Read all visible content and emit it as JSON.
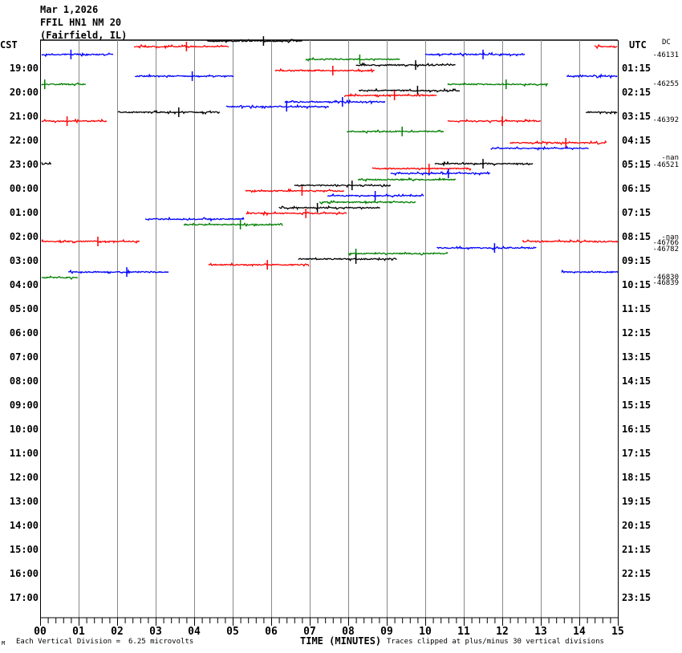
{
  "header": {
    "date": "Mar 1,2026",
    "station": "FFIL HN1 NM 20",
    "location": "(Fairfield, IL)"
  },
  "left_axis": {
    "title": "CST",
    "labels": [
      "19:00",
      "20:00",
      "21:00",
      "22:00",
      "23:00",
      "00:00",
      "01:00",
      "02:00",
      "03:00",
      "04:00",
      "05:00",
      "06:00",
      "07:00",
      "08:00",
      "09:00",
      "10:00",
      "11:00",
      "12:00",
      "13:00",
      "14:00",
      "15:00",
      "16:00",
      "17:00"
    ]
  },
  "right_axis": {
    "title": "UTC",
    "labels": [
      "01:15",
      "02:15",
      "03:15",
      "04:15",
      "05:15",
      "06:15",
      "07:15",
      "08:15",
      "09:15",
      "10:15",
      "11:15",
      "12:15",
      "13:15",
      "14:15",
      "15:15",
      "16:15",
      "17:15",
      "18:15",
      "19:15",
      "20:15",
      "21:15",
      "22:15",
      "23:15"
    ]
  },
  "dc": {
    "title": "DC",
    "values": [
      {
        "text": "-46131",
        "row": 0.5
      },
      {
        "text": "-46255",
        "row": 1.7
      },
      {
        "text": "-46392",
        "row": 3.2
      },
      {
        "text": "-nan",
        "row": 4.78
      },
      {
        "text": "-46521",
        "row": 5.05
      },
      {
        "text": "-nan",
        "row": 8.05
      },
      {
        "text": "-46766",
        "row": 8.3
      },
      {
        "text": "-46782",
        "row": 8.57
      },
      {
        "text": "-46830",
        "row": 9.73
      },
      {
        "text": "-46839",
        "row": 9.98
      }
    ]
  },
  "footer": {
    "corner": "M",
    "division_label": "Each Vertical Division =",
    "division_value": "6.25 microvolts",
    "xlabel": "TIME (MINUTES)",
    "clip_note": "Traces clipped at plus/minus 30 vertical divisions"
  },
  "chart_data": {
    "type": "line",
    "title": "FFIL HN1 NM 20 helicorder",
    "xlabel": "TIME (MINUTES)",
    "xlim": [
      0,
      15
    ],
    "x_ticks": [
      "00",
      "01",
      "02",
      "03",
      "04",
      "05",
      "06",
      "07",
      "08",
      "09",
      "10",
      "11",
      "12",
      "13",
      "14",
      "15"
    ],
    "rows": 24,
    "colors": {
      "black": "#000000",
      "red": "#ff0000",
      "blue": "#0000ff",
      "green": "#007f00"
    },
    "traces": [
      {
        "color": "black",
        "start": 4.33,
        "end": 6.83,
        "level": -0.13,
        "spike": 5.8
      },
      {
        "color": "red",
        "start": 14.4,
        "end": 15,
        "level": 0.1
      },
      {
        "color": "red",
        "start": 2.44,
        "end": 4.9,
        "level": 0.1,
        "spike": 3.8
      },
      {
        "color": "blue",
        "start": 0.04,
        "end": 1.9,
        "level": 0.43,
        "spike": 0.8
      },
      {
        "color": "blue",
        "start": 10,
        "end": 12.6,
        "level": 0.43,
        "spike": 11.5
      },
      {
        "color": "green",
        "start": 6.9,
        "end": 9.35,
        "level": 0.63,
        "spike": 8.3
      },
      {
        "color": "black",
        "start": 8.2,
        "end": 10.8,
        "level": 0.87,
        "spike": 9.75
      },
      {
        "color": "red",
        "start": 6.1,
        "end": 8.7,
        "level": 1.1,
        "spike": 7.6
      },
      {
        "color": "blue",
        "start": 2.46,
        "end": 5.04,
        "level": 1.33,
        "spike": 3.95
      },
      {
        "color": "blue",
        "start": 13.67,
        "end": 15,
        "level": 1.33
      },
      {
        "color": "green",
        "start": 0.04,
        "end": 1.19,
        "level": 1.67,
        "spike": 0.12
      },
      {
        "color": "green",
        "start": 10.58,
        "end": 13.2,
        "level": 1.67,
        "spike": 12.1
      },
      {
        "color": "black",
        "start": 8.27,
        "end": 10.9,
        "level": 1.93,
        "spike": 9.8
      },
      {
        "color": "red",
        "start": 7.9,
        "end": 10.3,
        "level": 2.13,
        "spike": 9.2
      },
      {
        "color": "blue",
        "start": 6.35,
        "end": 8.96,
        "level": 2.4,
        "spike": 7.85
      },
      {
        "color": "blue",
        "start": 4.83,
        "end": 7.5,
        "level": 2.6,
        "spike": 6.4
      },
      {
        "color": "black",
        "start": 2.02,
        "end": 4.67,
        "level": 2.83,
        "spike": 3.6
      },
      {
        "color": "black",
        "start": 14.17,
        "end": 15,
        "level": 2.83
      },
      {
        "color": "red",
        "start": 0.04,
        "end": 1.73,
        "level": 3.2,
        "spike": 0.7
      },
      {
        "color": "red",
        "start": 10.58,
        "end": 13,
        "level": 3.2,
        "spike": 12
      },
      {
        "color": "green",
        "start": 7.96,
        "end": 10.5,
        "level": 3.63,
        "spike": 9.4
      },
      {
        "color": "red",
        "start": 12.2,
        "end": 14.7,
        "level": 4.1,
        "spike": 13.65
      },
      {
        "color": "blue",
        "start": 11.7,
        "end": 14.25,
        "level": 4.33
      },
      {
        "color": "black",
        "start": 0.04,
        "end": 0.31,
        "level": 4.97
      },
      {
        "color": "black",
        "start": 10.25,
        "end": 12.8,
        "level": 4.97,
        "spike": 11.5
      },
      {
        "color": "red",
        "start": 8.62,
        "end": 11.2,
        "level": 5.17,
        "spike": 10.1
      },
      {
        "color": "blue",
        "start": 9.1,
        "end": 11.7,
        "level": 5.37,
        "spike": 10.6
      },
      {
        "color": "green",
        "start": 8.25,
        "end": 10.8,
        "level": 5.63
      },
      {
        "color": "black",
        "start": 6.6,
        "end": 9.1,
        "level": 5.87,
        "spike": 8.1
      },
      {
        "color": "red",
        "start": 5.33,
        "end": 7.9,
        "level": 6.1,
        "spike": 6.8
      },
      {
        "color": "blue",
        "start": 7.46,
        "end": 9.96,
        "level": 6.3,
        "spike": 8.7
      },
      {
        "color": "green",
        "start": 7.25,
        "end": 9.75,
        "level": 6.57
      },
      {
        "color": "black",
        "start": 6.2,
        "end": 8.83,
        "level": 6.8,
        "spike": 7.2
      },
      {
        "color": "red",
        "start": 5.35,
        "end": 7.96,
        "level": 7.03,
        "spike": 6.9
      },
      {
        "color": "blue",
        "start": 2.73,
        "end": 5.3,
        "level": 7.27
      },
      {
        "color": "green",
        "start": 3.73,
        "end": 6.3,
        "level": 7.5,
        "spike": 5.2
      },
      {
        "color": "red",
        "start": 0.04,
        "end": 2.6,
        "level": 8.2,
        "spike": 1.5
      },
      {
        "color": "red",
        "start": 12.52,
        "end": 15,
        "level": 8.2
      },
      {
        "color": "blue",
        "start": 10.3,
        "end": 12.9,
        "level": 8.47,
        "spike": 11.8
      },
      {
        "color": "green",
        "start": 8,
        "end": 10.6,
        "level": 8.7,
        "spike": 8.2
      },
      {
        "color": "black",
        "start": 6.7,
        "end": 9.27,
        "level": 8.93,
        "spike": 8.2
      },
      {
        "color": "red",
        "start": 4.37,
        "end": 6.98,
        "level": 9.17,
        "spike": 5.9
      },
      {
        "color": "blue",
        "start": 0.73,
        "end": 3.35,
        "level": 9.47,
        "spike": 2.25
      },
      {
        "color": "blue",
        "start": 13.54,
        "end": 15,
        "level": 9.47
      },
      {
        "color": "green",
        "start": 0.04,
        "end": 0.98,
        "level": 9.7
      }
    ]
  }
}
